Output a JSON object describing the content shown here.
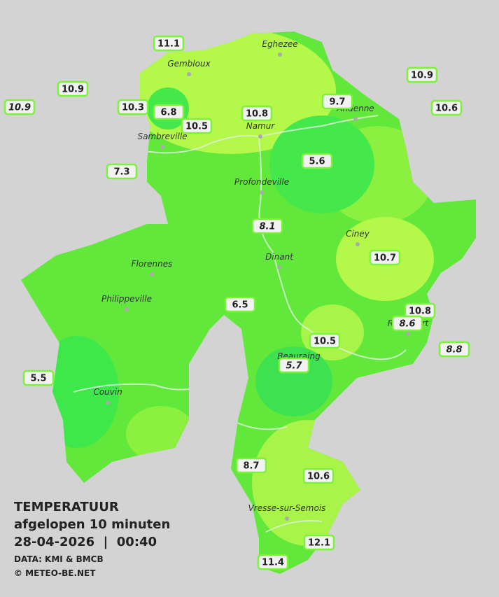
{
  "legend": {
    "title": "TEMPERATUUR",
    "subtitle": "afgelopen 10 minuten",
    "datetime": "28-04-2026  |  00:40",
    "source": "DATA: KMI & BMCB",
    "copyright": "© METEO-BE.NET"
  },
  "places": [
    "Eghezee",
    "Gembloux",
    "Namur",
    "Andenne",
    "Sambreville",
    "Profondeville",
    "Ciney",
    "Dinant",
    "Florennes",
    "Philippeville",
    "Rochefort",
    "Beauraing",
    "Couvin",
    "Vresse-sur-Semois"
  ],
  "stations": [
    {
      "value": "11.1"
    },
    {
      "value": "10.9"
    },
    {
      "value": "10.9",
      "italic": true
    },
    {
      "value": "10.3"
    },
    {
      "value": "6.8"
    },
    {
      "value": "10.5"
    },
    {
      "value": "10.8"
    },
    {
      "value": "9.7"
    },
    {
      "value": "10.9"
    },
    {
      "value": "10.6"
    },
    {
      "value": "7.3"
    },
    {
      "value": "5.6"
    },
    {
      "value": "8.1",
      "italic": true
    },
    {
      "value": "10.7"
    },
    {
      "value": "6.5"
    },
    {
      "value": "10.8"
    },
    {
      "value": "8.6",
      "italic": true
    },
    {
      "value": "8.8",
      "italic": true
    },
    {
      "value": "10.5"
    },
    {
      "value": "5.7",
      "italic": true
    },
    {
      "value": "5.5"
    },
    {
      "value": "8.7"
    },
    {
      "value": "10.6"
    },
    {
      "value": "12.1"
    },
    {
      "value": "11.4"
    }
  ]
}
